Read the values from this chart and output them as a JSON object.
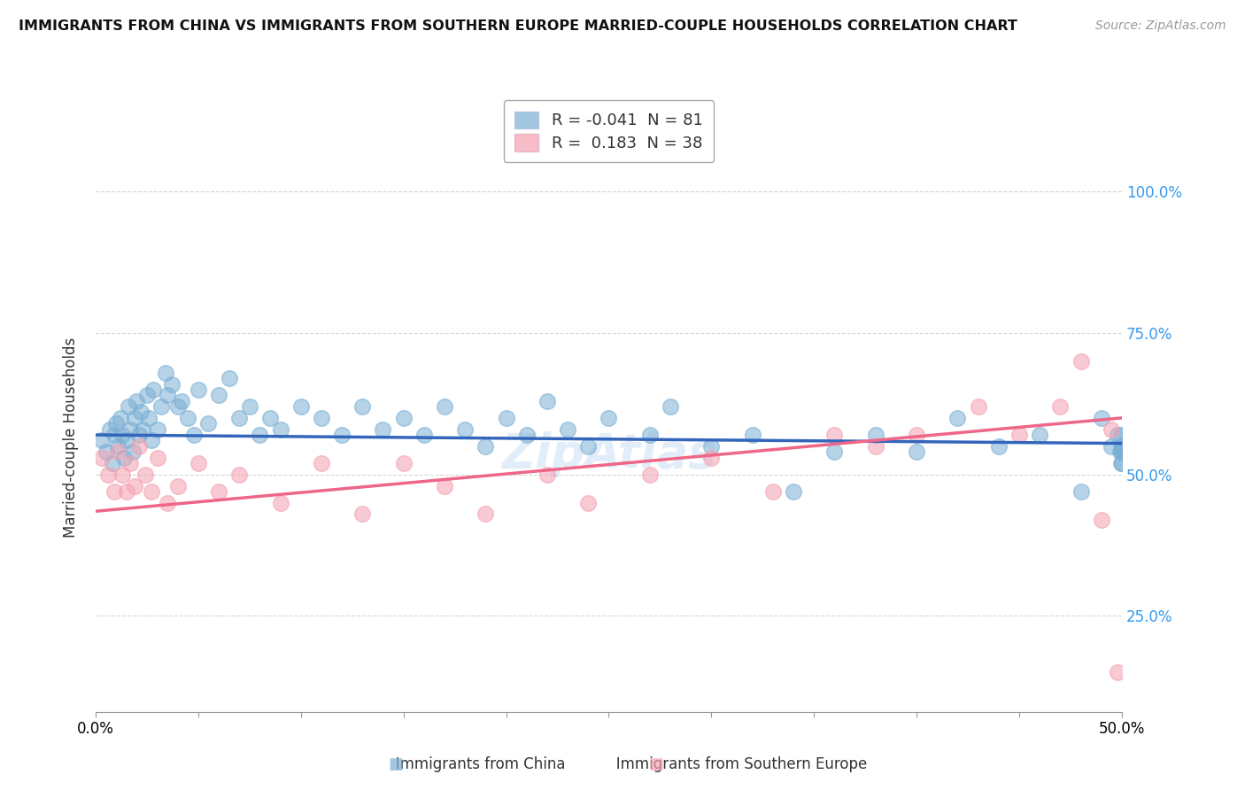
{
  "title": "IMMIGRANTS FROM CHINA VS IMMIGRANTS FROM SOUTHERN EUROPE MARRIED-COUPLE HOUSEHOLDS CORRELATION CHART",
  "source": "Source: ZipAtlas.com",
  "ylabel": "Married-couple Households",
  "legend_china": "Immigrants from China",
  "legend_se": "Immigrants from Southern Europe",
  "R_china": -0.041,
  "N_china": 81,
  "R_se": 0.183,
  "N_se": 38,
  "color_china": "#7bafd4",
  "color_se": "#f4a0b0",
  "line_color_china": "#3366bb",
  "line_color_se": "#ee6688",
  "xmin": 0.0,
  "xmax": 0.5,
  "ymin": 0.08,
  "ymax": 1.05,
  "yticks": [
    0.25,
    0.5,
    0.75,
    1.0
  ],
  "ytick_labels": [
    "25.0%",
    "50.0%",
    "75.0%",
    "100.0%"
  ],
  "china_x": [
    0.003,
    0.005,
    0.007,
    0.008,
    0.009,
    0.01,
    0.011,
    0.012,
    0.013,
    0.014,
    0.015,
    0.016,
    0.017,
    0.018,
    0.019,
    0.02,
    0.021,
    0.022,
    0.023,
    0.025,
    0.026,
    0.027,
    0.028,
    0.03,
    0.032,
    0.034,
    0.035,
    0.037,
    0.04,
    0.042,
    0.045,
    0.048,
    0.05,
    0.055,
    0.06,
    0.065,
    0.07,
    0.075,
    0.08,
    0.085,
    0.09,
    0.1,
    0.11,
    0.12,
    0.13,
    0.14,
    0.15,
    0.16,
    0.17,
    0.18,
    0.19,
    0.2,
    0.21,
    0.22,
    0.23,
    0.24,
    0.25,
    0.27,
    0.28,
    0.3,
    0.32,
    0.34,
    0.36,
    0.38,
    0.4,
    0.42,
    0.44,
    0.46,
    0.48,
    0.49,
    0.495,
    0.498,
    0.499,
    0.4995,
    0.4999,
    0.4999,
    0.4999,
    0.4999,
    0.4999,
    0.4999,
    0.4999
  ],
  "china_y": [
    0.56,
    0.54,
    0.58,
    0.52,
    0.57,
    0.59,
    0.55,
    0.6,
    0.57,
    0.53,
    0.56,
    0.62,
    0.58,
    0.54,
    0.6,
    0.63,
    0.57,
    0.61,
    0.58,
    0.64,
    0.6,
    0.56,
    0.65,
    0.58,
    0.62,
    0.68,
    0.64,
    0.66,
    0.62,
    0.63,
    0.6,
    0.57,
    0.65,
    0.59,
    0.64,
    0.67,
    0.6,
    0.62,
    0.57,
    0.6,
    0.58,
    0.62,
    0.6,
    0.57,
    0.62,
    0.58,
    0.6,
    0.57,
    0.62,
    0.58,
    0.55,
    0.6,
    0.57,
    0.63,
    0.58,
    0.55,
    0.6,
    0.57,
    0.62,
    0.55,
    0.57,
    0.47,
    0.54,
    0.57,
    0.54,
    0.6,
    0.55,
    0.57,
    0.47,
    0.6,
    0.55,
    0.57,
    0.54,
    0.52,
    0.57,
    0.55,
    0.54,
    0.52,
    0.55,
    0.54,
    0.55
  ],
  "se_x": [
    0.003,
    0.006,
    0.009,
    0.011,
    0.013,
    0.015,
    0.017,
    0.019,
    0.021,
    0.024,
    0.027,
    0.03,
    0.035,
    0.04,
    0.05,
    0.06,
    0.07,
    0.09,
    0.11,
    0.13,
    0.15,
    0.17,
    0.19,
    0.22,
    0.24,
    0.27,
    0.3,
    0.33,
    0.36,
    0.38,
    0.4,
    0.43,
    0.45,
    0.47,
    0.48,
    0.49,
    0.495,
    0.498
  ],
  "se_y": [
    0.53,
    0.5,
    0.47,
    0.54,
    0.5,
    0.47,
    0.52,
    0.48,
    0.55,
    0.5,
    0.47,
    0.53,
    0.45,
    0.48,
    0.52,
    0.47,
    0.5,
    0.45,
    0.52,
    0.43,
    0.52,
    0.48,
    0.43,
    0.5,
    0.45,
    0.5,
    0.53,
    0.47,
    0.57,
    0.55,
    0.57,
    0.62,
    0.57,
    0.62,
    0.7,
    0.42,
    0.58,
    0.15
  ],
  "trend_china_y0": 0.57,
  "trend_china_y1": 0.555,
  "trend_se_y0": 0.435,
  "trend_se_y1": 0.6
}
